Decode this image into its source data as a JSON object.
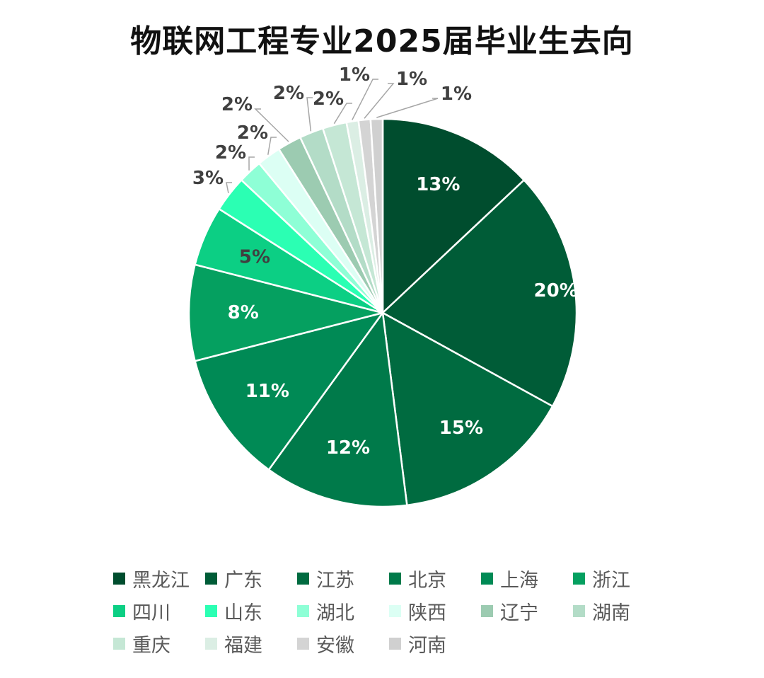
{
  "chart_data": {
    "type": "pie",
    "title": "物联网工程专业2025届毕业生去向",
    "legend_position": "bottom",
    "categories": [
      "黑龙江",
      "广东",
      "江苏",
      "北京",
      "上海",
      "浙江",
      "四川",
      "山东",
      "湖北",
      "陕西",
      "辽宁",
      "湖南",
      "重庆",
      "福建",
      "安徽",
      "河南"
    ],
    "values": [
      13,
      20,
      15,
      12,
      11,
      8,
      5,
      3,
      2,
      2,
      2,
      2,
      2,
      1,
      1,
      1
    ],
    "value_labels": [
      "13%",
      "20%",
      "15%",
      "12%",
      "11%",
      "8%",
      "5%",
      "3%",
      "2%",
      "2%",
      "2%",
      "2%",
      "2%",
      "1%",
      "1%",
      "1%"
    ],
    "colors": [
      "#004d2e",
      "#005c37",
      "#006b40",
      "#007a4a",
      "#008a55",
      "#05a060",
      "#0ccf84",
      "#2bffb3",
      "#8effd6",
      "#dcfff4",
      "#9ccbb1",
      "#b3dcc7",
      "#c5e7d5",
      "#dbeee4",
      "#d4d4d4",
      "#d0d0d0"
    ]
  }
}
